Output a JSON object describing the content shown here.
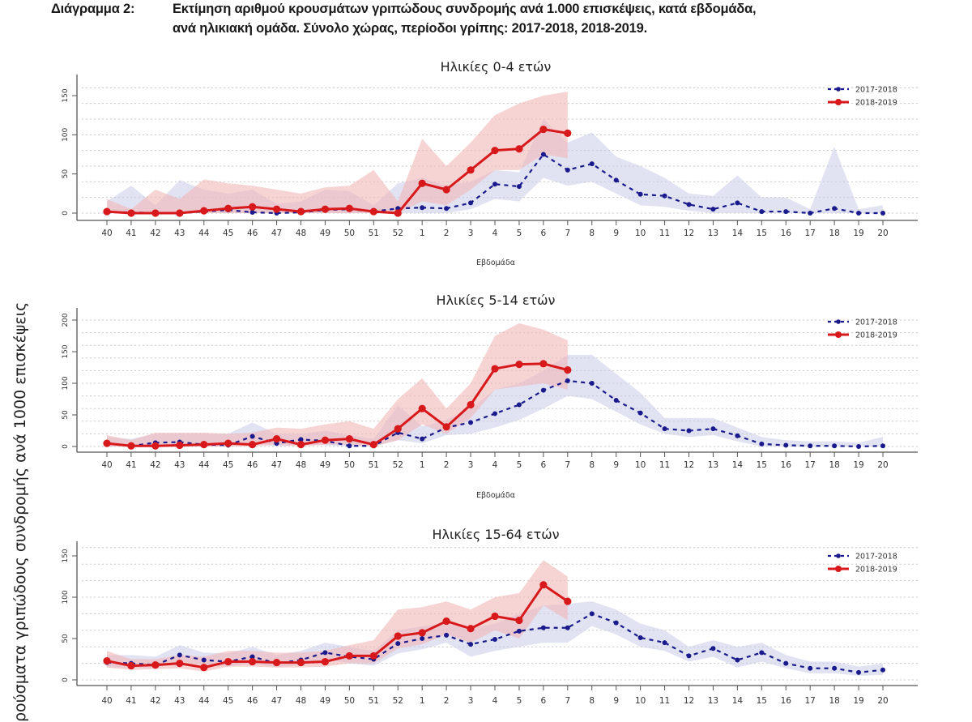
{
  "header": {
    "label": "Διάγραμμα 2:",
    "line1": "Εκτίμηση αριθμού κρουσμάτων γριπώδους συνδρομής ανά 1.000 επισκέψεις, κατά εβδομάδα,",
    "line2": "ανά ηλικιακή ομάδα. Σύνολο χώρας, περίοδοι γρίπης:  2017-2018, 2018-2019."
  },
  "shared_ylabel": "ρούσματα γριπώδους συνδρομής ανά 1000 επισκέψεις",
  "colors": {
    "series_2017_2018": "#1a1a8c",
    "series_2018_2019": "#d7191c",
    "band_2017_2018": "#c9cbe8",
    "band_2018_2019": "#f2b8b8",
    "grid": "#c8c8c8",
    "axis": "#555555"
  },
  "chart_data": [
    {
      "type": "line",
      "title": "Ηλικίες 0-4 ετών",
      "xlabel": "Εβδομάδα",
      "ylabel": "",
      "categories": [
        "40",
        "41",
        "42",
        "43",
        "44",
        "45",
        "46",
        "47",
        "48",
        "49",
        "50",
        "51",
        "52",
        "1",
        "2",
        "3",
        "4",
        "5",
        "6",
        "7",
        "8",
        "9",
        "10",
        "11",
        "12",
        "13",
        "14",
        "15",
        "16",
        "17",
        "18",
        "19",
        "20"
      ],
      "ylim": [
        0,
        170
      ],
      "yticks": [
        0,
        50,
        100,
        150
      ],
      "grid_step": 20,
      "grid": true,
      "legend_position": "top-right",
      "series": [
        {
          "name": "2017-2018",
          "style": "dashed-dots",
          "values": [
            1,
            1,
            0,
            0,
            2,
            4,
            1,
            0,
            1,
            4,
            5,
            2,
            6,
            7,
            6,
            13,
            37,
            34,
            75,
            55,
            63,
            42,
            24,
            22,
            11,
            5,
            13,
            2,
            2,
            0,
            6,
            0,
            0
          ],
          "band_lower": [
            0,
            0,
            0,
            0,
            0,
            0,
            0,
            0,
            0,
            0,
            0,
            0,
            0,
            0,
            0,
            5,
            18,
            15,
            45,
            35,
            40,
            25,
            10,
            8,
            3,
            0,
            0,
            0,
            0,
            0,
            0,
            0,
            0
          ],
          "band_upper": [
            15,
            35,
            10,
            42,
            30,
            25,
            30,
            12,
            15,
            30,
            28,
            10,
            38,
            45,
            35,
            40,
            55,
            52,
            120,
            90,
            103,
            72,
            60,
            45,
            25,
            22,
            48,
            20,
            20,
            5,
            85,
            5,
            10
          ]
        },
        {
          "name": "2018-2019",
          "style": "solid-dots",
          "values": [
            2,
            0,
            0,
            0,
            3,
            6,
            8,
            5,
            2,
            5,
            6,
            2,
            0,
            38,
            30,
            55,
            80,
            82,
            107,
            102
          ],
          "band_lower": [
            0,
            0,
            0,
            0,
            0,
            0,
            0,
            0,
            0,
            0,
            0,
            0,
            0,
            15,
            10,
            30,
            55,
            55,
            75,
            70
          ],
          "band_upper": [
            18,
            5,
            30,
            18,
            43,
            38,
            35,
            30,
            25,
            33,
            35,
            55,
            15,
            95,
            60,
            90,
            125,
            140,
            150,
            155
          ]
        }
      ]
    },
    {
      "type": "line",
      "title": "Ηλικίες 5-14 ετών",
      "xlabel": "Εβδομάδα",
      "ylabel": "",
      "categories": [
        "40",
        "41",
        "42",
        "43",
        "44",
        "45",
        "46",
        "47",
        "48",
        "49",
        "50",
        "51",
        "52",
        "1",
        "2",
        "3",
        "4",
        "5",
        "6",
        "7",
        "8",
        "9",
        "10",
        "11",
        "12",
        "13",
        "14",
        "15",
        "16",
        "17",
        "18",
        "19",
        "20"
      ],
      "ylim": [
        0,
        220
      ],
      "yticks": [
        0,
        50,
        100,
        150,
        200
      ],
      "grid_step": 20,
      "grid": true,
      "legend_position": "top-right",
      "series": [
        {
          "name": "2017-2018",
          "style": "dashed-dots",
          "values": [
            5,
            1,
            6,
            7,
            3,
            2,
            16,
            5,
            11,
            9,
            1,
            1,
            22,
            12,
            30,
            38,
            52,
            66,
            89,
            104,
            100,
            73,
            53,
            28,
            25,
            28,
            17,
            4,
            2,
            1,
            1,
            0,
            1
          ],
          "band_lower": [
            0,
            0,
            0,
            0,
            0,
            0,
            5,
            0,
            3,
            2,
            0,
            0,
            10,
            5,
            18,
            20,
            30,
            42,
            60,
            80,
            75,
            55,
            35,
            20,
            15,
            18,
            8,
            0,
            0,
            0,
            0,
            0,
            0
          ],
          "band_upper": [
            15,
            12,
            20,
            20,
            20,
            20,
            38,
            20,
            20,
            25,
            18,
            12,
            65,
            32,
            42,
            60,
            90,
            100,
            120,
            145,
            145,
            115,
            85,
            45,
            45,
            45,
            30,
            15,
            10,
            8,
            8,
            6,
            15
          ]
        },
        {
          "name": "2018-2019",
          "style": "solid-dots",
          "values": [
            5,
            1,
            1,
            2,
            3,
            5,
            3,
            12,
            3,
            10,
            12,
            3,
            28,
            60,
            31,
            66,
            123,
            130,
            131,
            121
          ],
          "band_lower": [
            0,
            0,
            0,
            0,
            0,
            0,
            0,
            3,
            0,
            3,
            3,
            0,
            10,
            35,
            20,
            45,
            90,
            95,
            100,
            90
          ],
          "band_upper": [
            18,
            10,
            22,
            22,
            22,
            20,
            22,
            30,
            28,
            35,
            40,
            28,
            75,
            108,
            60,
            100,
            175,
            195,
            185,
            168
          ]
        }
      ]
    },
    {
      "type": "line",
      "title": "Ηλικίες 15-64 ετών",
      "xlabel": "Εβδομάδα",
      "ylabel": "",
      "categories": [
        "40",
        "41",
        "42",
        "43",
        "44",
        "45",
        "46",
        "47",
        "48",
        "49",
        "50",
        "51",
        "52",
        "1",
        "2",
        "3",
        "4",
        "5",
        "6",
        "7",
        "8",
        "9",
        "10",
        "11",
        "12",
        "13",
        "14",
        "15",
        "16",
        "17",
        "18",
        "19",
        "20"
      ],
      "ylim": [
        0,
        165
      ],
      "yticks": [
        0,
        50,
        100,
        150
      ],
      "grid_step": 20,
      "grid": true,
      "legend_position": "top-right",
      "series": [
        {
          "name": "2017-2018",
          "style": "dashed-dots",
          "values": [
            21,
            20,
            18,
            30,
            24,
            22,
            28,
            20,
            24,
            33,
            28,
            25,
            44,
            50,
            54,
            43,
            49,
            59,
            63,
            63,
            80,
            69,
            51,
            45,
            29,
            38,
            24,
            33,
            20,
            14,
            14,
            9,
            12
          ],
          "band_lower": [
            15,
            15,
            14,
            22,
            18,
            16,
            20,
            15,
            18,
            25,
            20,
            17,
            32,
            37,
            45,
            28,
            35,
            40,
            45,
            45,
            65,
            55,
            40,
            35,
            22,
            28,
            15,
            22,
            14,
            8,
            8,
            5,
            6
          ],
          "band_upper": [
            30,
            30,
            28,
            42,
            33,
            32,
            40,
            30,
            35,
            45,
            40,
            35,
            60,
            65,
            68,
            62,
            68,
            80,
            90,
            92,
            95,
            85,
            68,
            60,
            40,
            48,
            40,
            45,
            30,
            22,
            22,
            16,
            20
          ]
        },
        {
          "name": "2018-2019",
          "style": "solid-dots",
          "values": [
            23,
            17,
            18,
            20,
            15,
            22,
            22,
            21,
            21,
            22,
            29,
            29,
            53,
            57,
            71,
            62,
            77,
            72,
            115,
            95
          ],
          "band_lower": [
            15,
            12,
            13,
            14,
            10,
            16,
            16,
            15,
            15,
            16,
            20,
            20,
            38,
            43,
            55,
            45,
            60,
            50,
            90,
            72
          ],
          "band_upper": [
            35,
            25,
            25,
            30,
            28,
            35,
            35,
            33,
            33,
            35,
            42,
            48,
            85,
            88,
            95,
            85,
            100,
            105,
            145,
            125
          ]
        }
      ]
    }
  ]
}
